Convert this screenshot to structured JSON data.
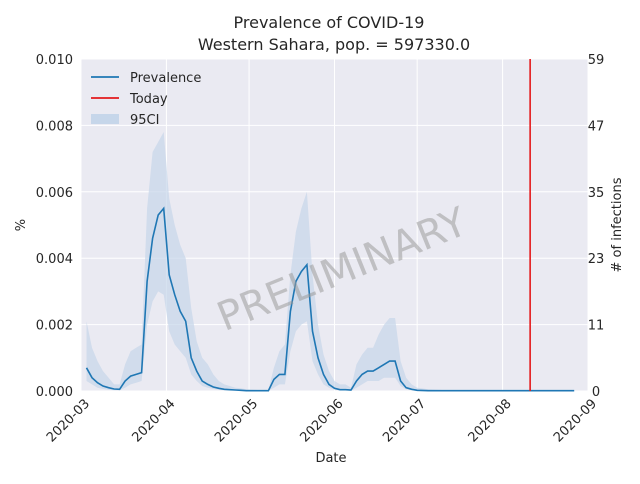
{
  "chart_data": {
    "type": "line",
    "title": "Prevalence of COVID-19",
    "subtitle": "Western Sahara, pop. = 597330.0",
    "xlabel": "Date",
    "ylabel": "%",
    "ylabel_right": "# of infections",
    "watermark": "PRELIMINARY",
    "xlim": [
      "2020-03-01",
      "2020-09-01"
    ],
    "x_ticks": [
      "2020-03",
      "2020-04",
      "2020-05",
      "2020-06",
      "2020-07",
      "2020-08",
      "2020-09"
    ],
    "x_tick_dates": [
      "2020-03-01",
      "2020-04-01",
      "2020-05-01",
      "2020-06-01",
      "2020-07-01",
      "2020-08-01",
      "2020-09-01"
    ],
    "ylim": [
      0,
      0.01
    ],
    "y_ticks": [
      "0.000",
      "0.002",
      "0.004",
      "0.006",
      "0.008",
      "0.010"
    ],
    "y_tick_values": [
      0,
      0.002,
      0.004,
      0.006,
      0.008,
      0.01
    ],
    "ylim_right": [
      0,
      59
    ],
    "y_ticks_right": [
      "0",
      "11",
      "23",
      "35",
      "47",
      "59"
    ],
    "y_tick_values_right": [
      0,
      11.8,
      23.6,
      35.4,
      47.2,
      59
    ],
    "grid": true,
    "legend_position": "top-left",
    "legend": [
      {
        "label": "Prevalence",
        "kind": "line",
        "color": "#1f77b4"
      },
      {
        "label": "Today",
        "kind": "line",
        "color": "#e31a1c"
      },
      {
        "label": "95CI",
        "kind": "patch",
        "color": "#c6d6ea"
      }
    ],
    "today": "2020-08-11",
    "colors": {
      "line": "#1f77b4",
      "ci": "#c6d6ea",
      "today": "#e31a1c",
      "background": "#eaeaf2",
      "grid": "#ffffff"
    },
    "series": [
      {
        "name": "Prevalence",
        "x": [
          "2020-03-03",
          "2020-03-05",
          "2020-03-07",
          "2020-03-09",
          "2020-03-11",
          "2020-03-13",
          "2020-03-15",
          "2020-03-17",
          "2020-03-19",
          "2020-03-21",
          "2020-03-23",
          "2020-03-25",
          "2020-03-27",
          "2020-03-29",
          "2020-03-31",
          "2020-04-02",
          "2020-04-04",
          "2020-04-06",
          "2020-04-08",
          "2020-04-10",
          "2020-04-12",
          "2020-04-14",
          "2020-04-16",
          "2020-04-18",
          "2020-04-20",
          "2020-04-22",
          "2020-04-24",
          "2020-04-26",
          "2020-04-28",
          "2020-04-30",
          "2020-05-04",
          "2020-05-08",
          "2020-05-10",
          "2020-05-12",
          "2020-05-14",
          "2020-05-16",
          "2020-05-18",
          "2020-05-20",
          "2020-05-22",
          "2020-05-24",
          "2020-05-26",
          "2020-05-28",
          "2020-05-30",
          "2020-06-01",
          "2020-06-03",
          "2020-06-05",
          "2020-06-07",
          "2020-06-09",
          "2020-06-11",
          "2020-06-13",
          "2020-06-15",
          "2020-06-17",
          "2020-06-19",
          "2020-06-21",
          "2020-06-23",
          "2020-06-25",
          "2020-06-27",
          "2020-06-29",
          "2020-07-01",
          "2020-07-05",
          "2020-07-10",
          "2020-07-20",
          "2020-08-01",
          "2020-08-11",
          "2020-08-20",
          "2020-08-27"
        ],
        "y": [
          0.0007,
          0.0004,
          0.00025,
          0.00015,
          0.0001,
          6e-05,
          5e-05,
          0.0003,
          0.00045,
          0.0005,
          0.00055,
          0.0033,
          0.0046,
          0.0053,
          0.0055,
          0.0035,
          0.0029,
          0.0024,
          0.0021,
          0.001,
          0.0006,
          0.0003,
          0.0002,
          0.00012,
          8e-05,
          5e-05,
          4e-05,
          3e-05,
          2e-05,
          1e-05,
          1e-05,
          1e-05,
          0.00035,
          0.0005,
          0.0005,
          0.0024,
          0.0033,
          0.0036,
          0.0038,
          0.0018,
          0.001,
          0.0005,
          0.0002,
          8e-05,
          4e-05,
          4e-05,
          3e-05,
          0.0003,
          0.0005,
          0.0006,
          0.0006,
          0.0007,
          0.0008,
          0.0009,
          0.0009,
          0.0003,
          0.0001,
          5e-05,
          2e-05,
          1e-05,
          1e-05,
          1e-05,
          1e-05,
          1e-05,
          1e-05,
          1e-05
        ]
      },
      {
        "name": "95CI",
        "x": [
          "2020-03-03",
          "2020-03-05",
          "2020-03-07",
          "2020-03-09",
          "2020-03-11",
          "2020-03-13",
          "2020-03-15",
          "2020-03-17",
          "2020-03-19",
          "2020-03-21",
          "2020-03-23",
          "2020-03-25",
          "2020-03-27",
          "2020-03-29",
          "2020-03-31",
          "2020-04-02",
          "2020-04-04",
          "2020-04-06",
          "2020-04-08",
          "2020-04-10",
          "2020-04-12",
          "2020-04-14",
          "2020-04-16",
          "2020-04-18",
          "2020-04-20",
          "2020-04-22",
          "2020-04-24",
          "2020-04-26",
          "2020-04-28",
          "2020-04-30",
          "2020-05-04",
          "2020-05-08",
          "2020-05-10",
          "2020-05-12",
          "2020-05-14",
          "2020-05-16",
          "2020-05-18",
          "2020-05-20",
          "2020-05-22",
          "2020-05-24",
          "2020-05-26",
          "2020-05-28",
          "2020-05-30",
          "2020-06-01",
          "2020-06-03",
          "2020-06-05",
          "2020-06-07",
          "2020-06-09",
          "2020-06-11",
          "2020-06-13",
          "2020-06-15",
          "2020-06-17",
          "2020-06-19",
          "2020-06-21",
          "2020-06-23",
          "2020-06-25",
          "2020-06-27",
          "2020-06-29",
          "2020-07-01",
          "2020-07-05",
          "2020-07-10",
          "2020-07-20",
          "2020-08-01",
          "2020-08-11",
          "2020-08-20",
          "2020-08-27"
        ],
        "lower": [
          0.0003,
          0.0002,
          0.0001,
          6e-05,
          4e-05,
          2e-05,
          2e-05,
          0.0001,
          0.0002,
          0.00025,
          0.0003,
          0.002,
          0.0027,
          0.003,
          0.0029,
          0.0018,
          0.0014,
          0.0012,
          0.001,
          0.0005,
          0.0003,
          0.00015,
          0.0001,
          6e-05,
          4e-05,
          2e-05,
          2e-05,
          1e-05,
          1e-05,
          5e-06,
          5e-06,
          5e-06,
          0.0001,
          0.0002,
          0.0002,
          0.0012,
          0.0018,
          0.002,
          0.0021,
          0.0009,
          0.0005,
          0.0002,
          0.0001,
          4e-05,
          2e-05,
          2e-05,
          1e-05,
          0.0001,
          0.0002,
          0.0003,
          0.0003,
          0.0003,
          0.0004,
          0.0004,
          0.0004,
          0.00015,
          5e-05,
          2e-05,
          1e-05,
          5e-06,
          5e-06,
          5e-06,
          5e-06,
          5e-06,
          5e-06,
          5e-06
        ],
        "upper": [
          0.0021,
          0.0013,
          0.0009,
          0.0006,
          0.0004,
          0.0002,
          0.0002,
          0.0008,
          0.0012,
          0.0013,
          0.0014,
          0.0055,
          0.0072,
          0.0075,
          0.0078,
          0.0058,
          0.005,
          0.0044,
          0.004,
          0.0025,
          0.0015,
          0.001,
          0.0008,
          0.0005,
          0.0003,
          0.0002,
          0.00015,
          0.0001,
          8e-05,
          5e-05,
          3e-05,
          3e-05,
          0.0007,
          0.0012,
          0.0014,
          0.0035,
          0.0048,
          0.0055,
          0.006,
          0.0035,
          0.002,
          0.0011,
          0.0006,
          0.0003,
          0.0002,
          0.0002,
          0.0001,
          0.0008,
          0.0011,
          0.0013,
          0.0013,
          0.0017,
          0.002,
          0.0022,
          0.0022,
          0.0009,
          0.0004,
          0.0002,
          0.0001,
          5e-05,
          3e-05,
          2e-05,
          2e-05,
          2e-05,
          2e-05,
          2e-05
        ]
      }
    ]
  }
}
